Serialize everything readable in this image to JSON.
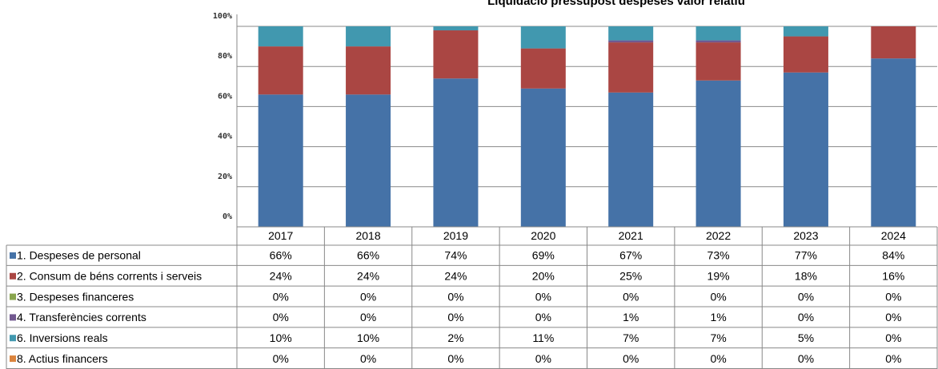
{
  "chart_data": {
    "type": "stacked_bar",
    "title": "Liquidació pressupost despeses valor relatiu",
    "categories": [
      "2017",
      "2018",
      "2019",
      "2020",
      "2021",
      "2022",
      "2023",
      "2024"
    ],
    "ylim": [
      0,
      100
    ],
    "yticks": [
      {
        "value": 0,
        "label": "0%"
      },
      {
        "value": 20,
        "label": "20%"
      },
      {
        "value": 40,
        "label": "40%"
      },
      {
        "value": 60,
        "label": "60%"
      },
      {
        "value": 80,
        "label": "80%"
      },
      {
        "value": 100,
        "label": "100%"
      }
    ],
    "grid": true,
    "series": [
      {
        "name": "1. Despeses de personal",
        "color": "#4572a7",
        "values": [
          66,
          66,
          74,
          69,
          67,
          73,
          77,
          84
        ],
        "value_labels": [
          "66%",
          "66%",
          "74%",
          "69%",
          "67%",
          "73%",
          "77%",
          "84%"
        ]
      },
      {
        "name": "2. Consum de béns corrents i serveis",
        "color": "#aa4643",
        "values": [
          24,
          24,
          24,
          20,
          25,
          19,
          18,
          16
        ],
        "value_labels": [
          "24%",
          "24%",
          "24%",
          "20%",
          "25%",
          "19%",
          "18%",
          "16%"
        ]
      },
      {
        "name": "3. Despeses financeres",
        "color": "#89a54e",
        "values": [
          0,
          0,
          0,
          0,
          0,
          0,
          0,
          0
        ],
        "value_labels": [
          "0%",
          "0%",
          "0%",
          "0%",
          "0%",
          "0%",
          "0%",
          "0%"
        ]
      },
      {
        "name": "4. Transferències corrents",
        "color": "#71588f",
        "values": [
          0,
          0,
          0,
          0,
          1,
          1,
          0,
          0
        ],
        "value_labels": [
          "0%",
          "0%",
          "0%",
          "0%",
          "1%",
          "1%",
          "0%",
          "0%"
        ]
      },
      {
        "name": "6. Inversions reals",
        "color": "#4198af",
        "values": [
          10,
          10,
          2,
          11,
          7,
          7,
          5,
          0
        ],
        "value_labels": [
          "10%",
          "10%",
          "2%",
          "11%",
          "7%",
          "7%",
          "5%",
          "0%"
        ]
      },
      {
        "name": "8. Actius financers",
        "color": "#db843d",
        "values": [
          0,
          0,
          0,
          0,
          0,
          0,
          0,
          0
        ],
        "value_labels": [
          "0%",
          "0%",
          "0%",
          "0%",
          "0%",
          "0%",
          "0%",
          "0%"
        ]
      }
    ]
  }
}
